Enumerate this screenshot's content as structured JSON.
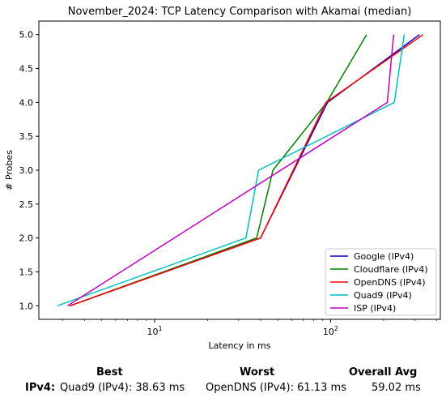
{
  "chart_data": {
    "type": "line",
    "title": "November_2024: TCP Latency Comparison with Akamai (median)",
    "xlabel": "Latency in ms",
    "ylabel": "# Probes",
    "x_scale": "log",
    "xlim": [
      2.2,
      420
    ],
    "ylim": [
      0.8,
      5.2
    ],
    "x_ticks": [
      {
        "value": 10,
        "base": "10",
        "exp": "1"
      },
      {
        "value": 100,
        "base": "10",
        "exp": "2"
      }
    ],
    "y_ticks": [
      "1.0",
      "1.5",
      "2.0",
      "2.5",
      "3.0",
      "3.5",
      "4.0",
      "4.5",
      "5.0"
    ],
    "legend_position": "lower right",
    "grid": false,
    "series": [
      {
        "name": "Google (IPv4)",
        "color": "#0000cc",
        "points": [
          [
            3.3,
            1
          ],
          [
            40,
            2
          ],
          [
            96,
            4
          ],
          [
            320,
            5
          ]
        ]
      },
      {
        "name": "Cloudflare (IPv4)",
        "color": "#008000",
        "points": [
          [
            3.3,
            1
          ],
          [
            38,
            2
          ],
          [
            47,
            3
          ],
          [
            95,
            4
          ],
          [
            160,
            5
          ]
        ]
      },
      {
        "name": "OpenDNS (IPv4)",
        "color": "#ff0000",
        "points": [
          [
            3.3,
            1
          ],
          [
            40,
            2
          ],
          [
            94,
            4
          ],
          [
            335,
            5
          ]
        ]
      },
      {
        "name": "Quad9 (IPv4)",
        "color": "#00bfbf",
        "points": [
          [
            2.8,
            1
          ],
          [
            33,
            2
          ],
          [
            39,
            3
          ],
          [
            230,
            4
          ],
          [
            262,
            5
          ]
        ]
      },
      {
        "name": "ISP (IPv4)",
        "color": "#bf00bf",
        "points": [
          [
            3.2,
            1
          ],
          [
            210,
            4
          ],
          [
            228,
            5
          ]
        ]
      }
    ]
  },
  "summary": {
    "headers": {
      "best": "Best",
      "worst": "Worst",
      "overall": "Overall Avg"
    },
    "row_label": "IPv4",
    "row_sep": ":",
    "best": "Quad9 (IPv4): 38.63 ms",
    "worst": "OpenDNS (IPv4): 61.13 ms",
    "overall": "59.02 ms"
  }
}
